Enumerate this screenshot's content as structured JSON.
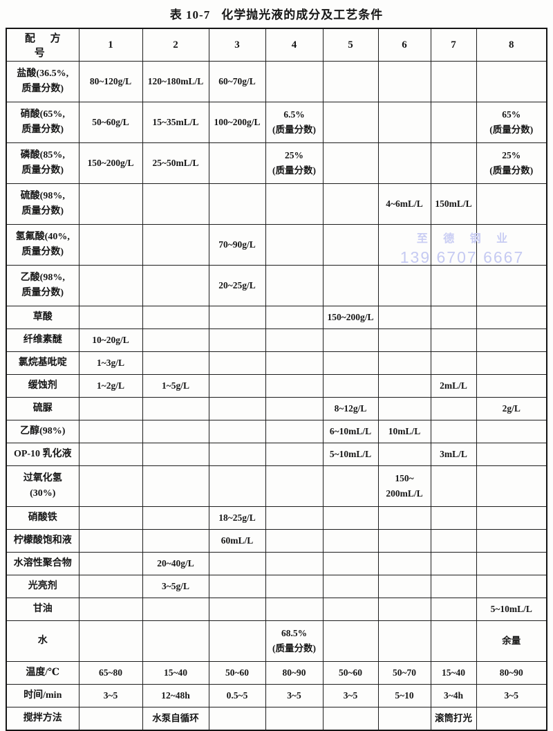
{
  "title": {
    "number": "表 10-7",
    "text": "化学抛光液的成分及工艺条件"
  },
  "watermark": {
    "company": "至 德 钢 业",
    "phone": "139 6707 6667",
    "color": "#c8ccf2"
  },
  "table": {
    "header": [
      "配 方 号",
      "1",
      "2",
      "3",
      "4",
      "5",
      "6",
      "7",
      "8"
    ],
    "rows": [
      {
        "label": "盐酸(36.5%,\n质量分数)",
        "cells": [
          "80~120g/L",
          "120~180mL/L",
          "60~70g/L",
          "",
          "",
          "",
          "",
          ""
        ]
      },
      {
        "label": "硝酸(65%,\n质量分数)",
        "cells": [
          "50~60g/L",
          "15~35mL/L",
          "100~200g/L",
          "6.5%\n(质量分数)",
          "",
          "",
          "",
          "65%\n(质量分数)"
        ]
      },
      {
        "label": "磷酸(85%,\n质量分数)",
        "cells": [
          "150~200g/L",
          "25~50mL/L",
          "",
          "25%\n(质量分数)",
          "",
          "",
          "",
          "25%\n(质量分数)"
        ]
      },
      {
        "label": "硫酸(98%,\n质量分数)",
        "cells": [
          "",
          "",
          "",
          "",
          "",
          "4~6mL/L",
          "150mL/L",
          ""
        ]
      },
      {
        "label": "氢氟酸(40%,\n质量分数)",
        "cells": [
          "",
          "",
          "70~90g/L",
          "",
          "",
          "",
          "",
          ""
        ]
      },
      {
        "label": "乙酸(98%,\n质量分数)",
        "cells": [
          "",
          "",
          "20~25g/L",
          "",
          "",
          "",
          "",
          ""
        ]
      },
      {
        "label": "草酸",
        "cells": [
          "",
          "",
          "",
          "",
          "150~200g/L",
          "",
          "",
          ""
        ]
      },
      {
        "label": "纤维素醚",
        "cells": [
          "10~20g/L",
          "",
          "",
          "",
          "",
          "",
          "",
          ""
        ]
      },
      {
        "label": "氯烷基吡啶",
        "cells": [
          "1~3g/L",
          "",
          "",
          "",
          "",
          "",
          "",
          ""
        ]
      },
      {
        "label": "缓蚀剂",
        "cells": [
          "1~2g/L",
          "1~5g/L",
          "",
          "",
          "",
          "",
          "2mL/L",
          ""
        ]
      },
      {
        "label": "硫脲",
        "cells": [
          "",
          "",
          "",
          "",
          "8~12g/L",
          "",
          "",
          "2g/L"
        ]
      },
      {
        "label": "乙醇(98%)",
        "cells": [
          "",
          "",
          "",
          "",
          "6~10mL/L",
          "10mL/L",
          "",
          ""
        ]
      },
      {
        "label": "OP-10 乳化液",
        "cells": [
          "",
          "",
          "",
          "",
          "5~10mL/L",
          "",
          "3mL/L",
          ""
        ]
      },
      {
        "label": "过氧化氢\n(30%)",
        "cells": [
          "",
          "",
          "",
          "",
          "",
          "150~\n200mL/L",
          "",
          ""
        ]
      },
      {
        "label": "硝酸铁",
        "cells": [
          "",
          "",
          "18~25g/L",
          "",
          "",
          "",
          "",
          ""
        ]
      },
      {
        "label": "柠檬酸饱和液",
        "cells": [
          "",
          "",
          "60mL/L",
          "",
          "",
          "",
          "",
          ""
        ]
      },
      {
        "label": "水溶性聚合物",
        "cells": [
          "",
          "20~40g/L",
          "",
          "",
          "",
          "",
          "",
          ""
        ]
      },
      {
        "label": "光亮剂",
        "cells": [
          "",
          "3~5g/L",
          "",
          "",
          "",
          "",
          "",
          ""
        ]
      },
      {
        "label": "甘油",
        "cells": [
          "",
          "",
          "",
          "",
          "",
          "",
          "",
          "5~10mL/L"
        ]
      },
      {
        "label": "水",
        "cells": [
          "",
          "",
          "",
          "68.5%\n(质量分数)",
          "",
          "",
          "",
          "余量"
        ]
      },
      {
        "label": "温度/℃",
        "cells": [
          "65~80",
          "15~40",
          "50~60",
          "80~90",
          "50~60",
          "50~70",
          "15~40",
          "80~90"
        ]
      },
      {
        "label": "时间/min",
        "cells": [
          "3~5",
          "12~48h",
          "0.5~5",
          "3~5",
          "3~5",
          "5~10",
          "3~4h",
          "3~5"
        ]
      },
      {
        "label": "搅拌方法",
        "cells": [
          "",
          "水泵自循环",
          "",
          "",
          "",
          "",
          "滚筒打光",
          ""
        ]
      }
    ]
  }
}
